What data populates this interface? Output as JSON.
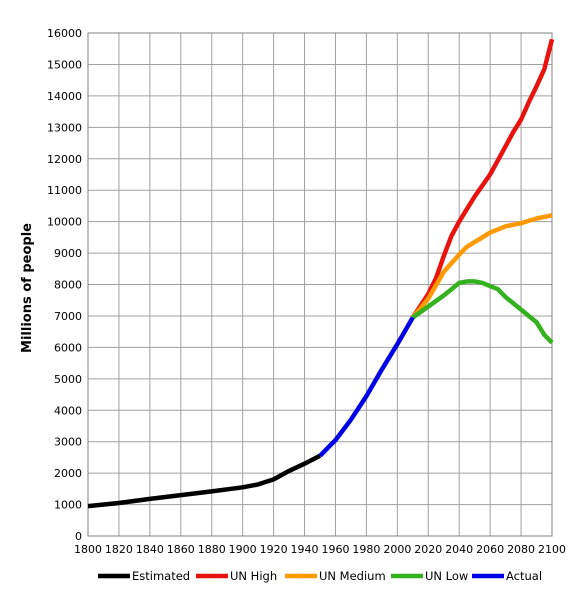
{
  "chart_data": {
    "type": "line",
    "title": "",
    "xlabel": "",
    "ylabel": "Millions of people",
    "xlim": [
      1800,
      2100
    ],
    "ylim": [
      0,
      16000
    ],
    "x_ticks": [
      1800,
      1820,
      1840,
      1860,
      1880,
      1900,
      1920,
      1940,
      1960,
      1980,
      2000,
      2020,
      2040,
      2060,
      2080,
      2100
    ],
    "y_ticks": [
      0,
      1000,
      2000,
      3000,
      4000,
      5000,
      6000,
      7000,
      8000,
      9000,
      10000,
      11000,
      12000,
      13000,
      14000,
      15000,
      16000
    ],
    "grid": true,
    "legend_position": "bottom",
    "series": [
      {
        "name": "Estimated",
        "color": "#000000",
        "points": [
          [
            1800,
            950
          ],
          [
            1820,
            1050
          ],
          [
            1840,
            1180
          ],
          [
            1860,
            1300
          ],
          [
            1880,
            1420
          ],
          [
            1900,
            1550
          ],
          [
            1910,
            1640
          ],
          [
            1920,
            1800
          ],
          [
            1930,
            2070
          ],
          [
            1940,
            2300
          ],
          [
            1950,
            2550
          ]
        ]
      },
      {
        "name": "UN High",
        "color": "#e8120e",
        "points": [
          [
            2010,
            6950
          ],
          [
            2020,
            7700
          ],
          [
            2025,
            8200
          ],
          [
            2030,
            8900
          ],
          [
            2035,
            9550
          ],
          [
            2040,
            10000
          ],
          [
            2045,
            10400
          ],
          [
            2050,
            10800
          ],
          [
            2055,
            11150
          ],
          [
            2060,
            11500
          ],
          [
            2065,
            11950
          ],
          [
            2070,
            12400
          ],
          [
            2075,
            12850
          ],
          [
            2080,
            13250
          ],
          [
            2085,
            13800
          ],
          [
            2090,
            14300
          ],
          [
            2095,
            14850
          ],
          [
            2100,
            15800
          ]
        ]
      },
      {
        "name": "UN Medium",
        "color": "#ff9900",
        "points": [
          [
            2010,
            6950
          ],
          [
            2020,
            7550
          ],
          [
            2030,
            8400
          ],
          [
            2040,
            8950
          ],
          [
            2045,
            9200
          ],
          [
            2050,
            9350
          ],
          [
            2060,
            9650
          ],
          [
            2070,
            9850
          ],
          [
            2080,
            9950
          ],
          [
            2090,
            10100
          ],
          [
            2100,
            10200
          ]
        ]
      },
      {
        "name": "UN Low",
        "color": "#33b21e",
        "points": [
          [
            2010,
            6950
          ],
          [
            2020,
            7300
          ],
          [
            2030,
            7650
          ],
          [
            2035,
            7850
          ],
          [
            2040,
            8050
          ],
          [
            2045,
            8100
          ],
          [
            2050,
            8100
          ],
          [
            2055,
            8050
          ],
          [
            2060,
            7950
          ],
          [
            2065,
            7850
          ],
          [
            2070,
            7600
          ],
          [
            2080,
            7200
          ],
          [
            2090,
            6800
          ],
          [
            2095,
            6400
          ],
          [
            2100,
            6150
          ]
        ]
      },
      {
        "name": "Actual",
        "color": "#0000e6",
        "points": [
          [
            1950,
            2550
          ],
          [
            1960,
            3050
          ],
          [
            1970,
            3700
          ],
          [
            1980,
            4450
          ],
          [
            1990,
            5300
          ],
          [
            2000,
            6100
          ],
          [
            2010,
            6950
          ]
        ]
      }
    ]
  }
}
